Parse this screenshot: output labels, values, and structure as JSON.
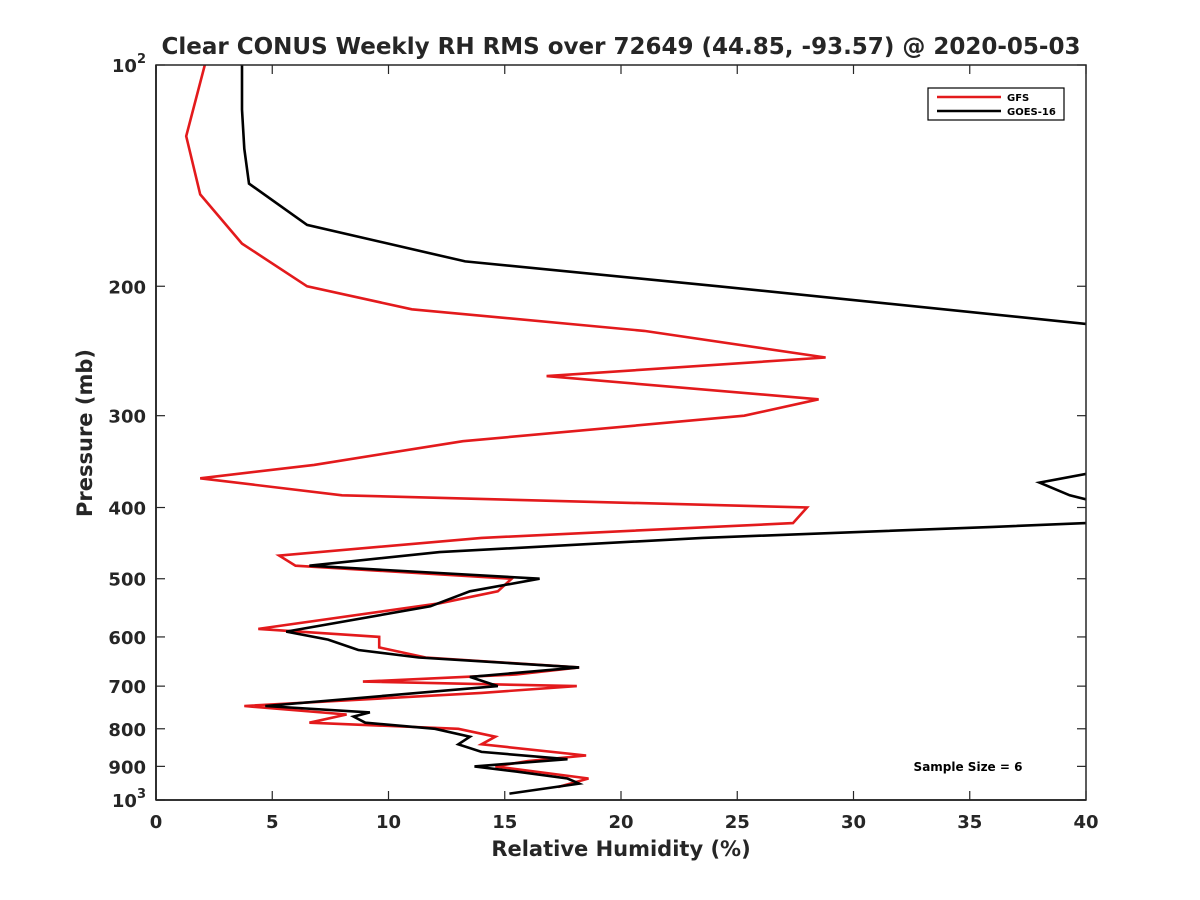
{
  "chart_data": {
    "type": "line",
    "title": "Clear CONUS Weekly RH RMS over 72649 (44.85, -93.57) @ 2020-05-03",
    "xlabel": "Relative Humidity (%)",
    "ylabel": "Pressure (mb)",
    "xlim": [
      0,
      40
    ],
    "ylim": [
      1000,
      100
    ],
    "yscale": "log",
    "y_reversed": true,
    "x_ticks": [
      0,
      5,
      10,
      15,
      20,
      25,
      30,
      35,
      40
    ],
    "y_ticks": [
      {
        "value": 100,
        "label": "10",
        "exp": "2"
      },
      {
        "value": 200,
        "label": "200"
      },
      {
        "value": 300,
        "label": "300"
      },
      {
        "value": 400,
        "label": "400"
      },
      {
        "value": 500,
        "label": "500"
      },
      {
        "value": 600,
        "label": "600"
      },
      {
        "value": 700,
        "label": "700"
      },
      {
        "value": 800,
        "label": "800"
      },
      {
        "value": 900,
        "label": "900"
      },
      {
        "value": 1000,
        "label": "10",
        "exp": "3"
      }
    ],
    "grid": false,
    "legend_position": "top-right",
    "series": [
      {
        "name": "GFS",
        "color": "#e31a1c",
        "points": [
          [
            2.1,
            100
          ],
          [
            1.3,
            125
          ],
          [
            1.9,
            150
          ],
          [
            3.7,
            175
          ],
          [
            6.5,
            200
          ],
          [
            11.0,
            215
          ],
          [
            21.0,
            230
          ],
          [
            28.8,
            250
          ],
          [
            16.8,
            265
          ],
          [
            28.5,
            285
          ],
          [
            25.3,
            300
          ],
          [
            13.2,
            325
          ],
          [
            6.8,
            350
          ],
          [
            1.9,
            365
          ],
          [
            8.0,
            385
          ],
          [
            28.0,
            400
          ],
          [
            27.4,
            420
          ],
          [
            14.0,
            440
          ],
          [
            5.3,
            465
          ],
          [
            6.0,
            480
          ],
          [
            15.3,
            500
          ],
          [
            14.7,
            520
          ],
          [
            12.2,
            540
          ],
          [
            4.4,
            585
          ],
          [
            9.6,
            600
          ],
          [
            9.6,
            620
          ],
          [
            11.6,
            640
          ],
          [
            18.2,
            660
          ],
          [
            15.5,
            675
          ],
          [
            8.9,
            690
          ],
          [
            18.1,
            700
          ],
          [
            14.0,
            715
          ],
          [
            3.8,
            745
          ],
          [
            8.2,
            765
          ],
          [
            6.6,
            785
          ],
          [
            13.0,
            800
          ],
          [
            14.6,
            820
          ],
          [
            14.0,
            840
          ],
          [
            18.5,
            870
          ],
          [
            16.0,
            885
          ],
          [
            14.6,
            900
          ],
          [
            18.6,
            935
          ],
          [
            17.3,
            960
          ]
        ]
      },
      {
        "name": "GOES-16",
        "color": "#000000",
        "points": [
          [
            3.7,
            100
          ],
          [
            3.7,
            115
          ],
          [
            3.8,
            130
          ],
          [
            4.0,
            145
          ],
          [
            6.5,
            165
          ],
          [
            13.3,
            185
          ],
          [
            24.2,
            200
          ],
          [
            40.0,
            225
          ]
        ],
        "segments": [
          [
            [
              40.0,
              360
            ],
            [
              38.0,
              370
            ],
            [
              39.3,
              385
            ],
            [
              40.0,
              390
            ]
          ],
          [
            [
              40.0,
              420
            ],
            [
              36.0,
              425
            ],
            [
              23.5,
              440
            ],
            [
              12.2,
              460
            ],
            [
              6.6,
              480
            ],
            [
              16.5,
              500
            ],
            [
              13.5,
              520
            ],
            [
              11.8,
              545
            ],
            [
              5.6,
              590
            ],
            [
              7.4,
              605
            ],
            [
              8.7,
              625
            ],
            [
              11.3,
              640
            ],
            [
              18.2,
              660
            ],
            [
              13.5,
              680
            ],
            [
              14.7,
              700
            ],
            [
              4.7,
              745
            ],
            [
              9.2,
              760
            ],
            [
              8.5,
              770
            ],
            [
              9.0,
              785
            ],
            [
              12.0,
              800
            ],
            [
              13.5,
              820
            ],
            [
              13.0,
              840
            ],
            [
              14.0,
              860
            ],
            [
              17.7,
              880
            ],
            [
              13.7,
              900
            ],
            [
              15.5,
              915
            ],
            [
              17.7,
              935
            ],
            [
              18.2,
              950
            ],
            [
              15.2,
              980
            ]
          ]
        ]
      }
    ],
    "annotation": "Sample Size = 6"
  }
}
